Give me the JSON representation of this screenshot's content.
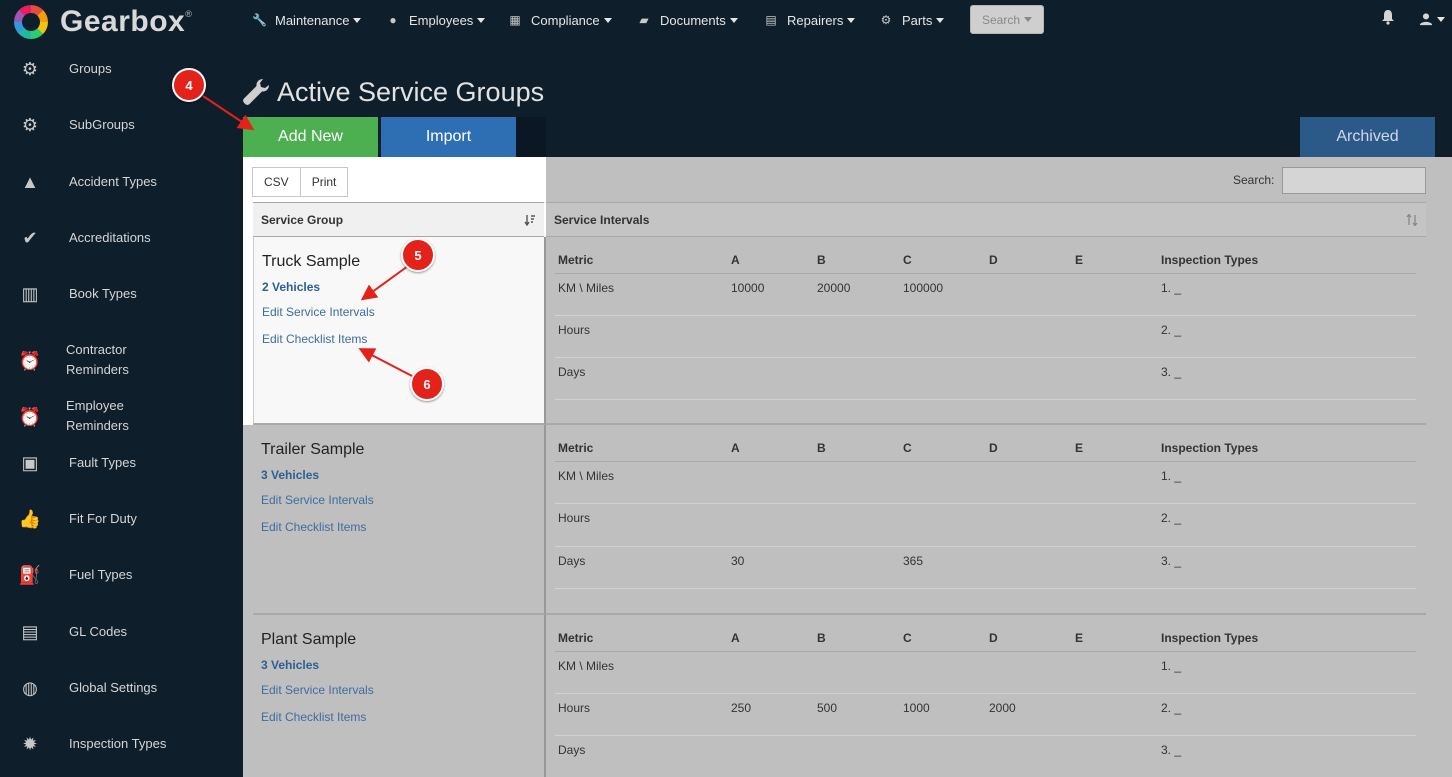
{
  "brand": {
    "name": "Gearbox",
    "reg": "®"
  },
  "nav": [
    {
      "label": "Maintenance",
      "icon": "wrench-icon",
      "glyph": "🔧"
    },
    {
      "label": "Employees",
      "icon": "user-circle-icon",
      "glyph": "●"
    },
    {
      "label": "Compliance",
      "icon": "calendar-check-icon",
      "glyph": "▦"
    },
    {
      "label": "Documents",
      "icon": "folder-open-icon",
      "glyph": "▰"
    },
    {
      "label": "Repairers",
      "icon": "contact-book-icon",
      "glyph": "▤"
    },
    {
      "label": "Parts",
      "icon": "gear-icon",
      "glyph": "⚙"
    }
  ],
  "search_button": "Search",
  "sidebar": [
    {
      "label": "Groups",
      "icon": "cogs-icon",
      "glyph": "⚙"
    },
    {
      "label": "SubGroups",
      "icon": "cogs-icon",
      "glyph": "⚙"
    },
    {
      "label": "Accident Types",
      "icon": "warning-triangle-icon",
      "glyph": "▲"
    },
    {
      "label": "Accreditations",
      "icon": "checkmark-icon",
      "glyph": "✔"
    },
    {
      "label": "Book Types",
      "icon": "books-icon",
      "glyph": "▥"
    },
    {
      "label": "Contractor Reminders",
      "icon": "alarm-clock-icon",
      "glyph": "⏰"
    },
    {
      "label": "Employee Reminders",
      "icon": "alarm-clock-icon",
      "glyph": "⏰"
    },
    {
      "label": "Fault Types",
      "icon": "engine-warning-icon",
      "glyph": "▣"
    },
    {
      "label": "Fit For Duty",
      "icon": "thumbs-up-icon",
      "glyph": "👍"
    },
    {
      "label": "Fuel Types",
      "icon": "fuel-pump-icon",
      "glyph": "⛽"
    },
    {
      "label": "GL Codes",
      "icon": "list-card-icon",
      "glyph": "▤"
    },
    {
      "label": "Global Settings",
      "icon": "globe-icon",
      "glyph": "◍"
    },
    {
      "label": "Inspection Types",
      "icon": "cog-badge-icon",
      "glyph": "✹"
    }
  ],
  "page": {
    "title": "Active Service Groups",
    "add_new": "Add New",
    "import": "Import",
    "archived": "Archived",
    "csv": "CSV",
    "print": "Print",
    "search_label": "Search:",
    "search_value": "",
    "col_group": "Service Group",
    "col_intervals": "Service Intervals"
  },
  "interval_headers": [
    "Metric",
    "A",
    "B",
    "C",
    "D",
    "E",
    "Inspection Types"
  ],
  "groups": [
    {
      "name": "Truck Sample",
      "vehicles": "2 Vehicles",
      "edit_intervals": "Edit Service Intervals",
      "edit_checklist": "Edit Checklist Items",
      "rows": [
        {
          "metric": "KM \\ Miles",
          "a": "10000",
          "b": "20000",
          "c": "100000",
          "d": "",
          "e": "",
          "insp": "1. _"
        },
        {
          "metric": "Hours",
          "a": "",
          "b": "",
          "c": "",
          "d": "",
          "e": "",
          "insp": "2. _"
        },
        {
          "metric": "Days",
          "a": "",
          "b": "",
          "c": "",
          "d": "",
          "e": "",
          "insp": "3. _"
        }
      ]
    },
    {
      "name": "Trailer Sample",
      "vehicles": "3 Vehicles",
      "edit_intervals": "Edit Service Intervals",
      "edit_checklist": "Edit Checklist Items",
      "rows": [
        {
          "metric": "KM \\ Miles",
          "a": "",
          "b": "",
          "c": "",
          "d": "",
          "e": "",
          "insp": "1. _"
        },
        {
          "metric": "Hours",
          "a": "",
          "b": "",
          "c": "",
          "d": "",
          "e": "",
          "insp": "2. _"
        },
        {
          "metric": "Days",
          "a": "30",
          "b": "",
          "c": "365",
          "d": "",
          "e": "",
          "insp": "3. _"
        }
      ]
    },
    {
      "name": "Plant Sample",
      "vehicles": "3 Vehicles",
      "edit_intervals": "Edit Service Intervals",
      "edit_checklist": "Edit Checklist Items",
      "rows": [
        {
          "metric": "KM \\ Miles",
          "a": "",
          "b": "",
          "c": "",
          "d": "",
          "e": "",
          "insp": "1. _"
        },
        {
          "metric": "Hours",
          "a": "250",
          "b": "500",
          "c": "1000",
          "d": "2000",
          "e": "",
          "insp": "2. _"
        },
        {
          "metric": "Days",
          "a": "",
          "b": "",
          "c": "",
          "d": "",
          "e": "",
          "insp": "3. _"
        }
      ]
    }
  ],
  "annotations": [
    "4",
    "5",
    "6"
  ],
  "colors": {
    "accent_green": "#4caf50",
    "accent_blue": "#2e6fb4",
    "annotation_red": "#e3221a",
    "background": "#0f1e2b"
  }
}
